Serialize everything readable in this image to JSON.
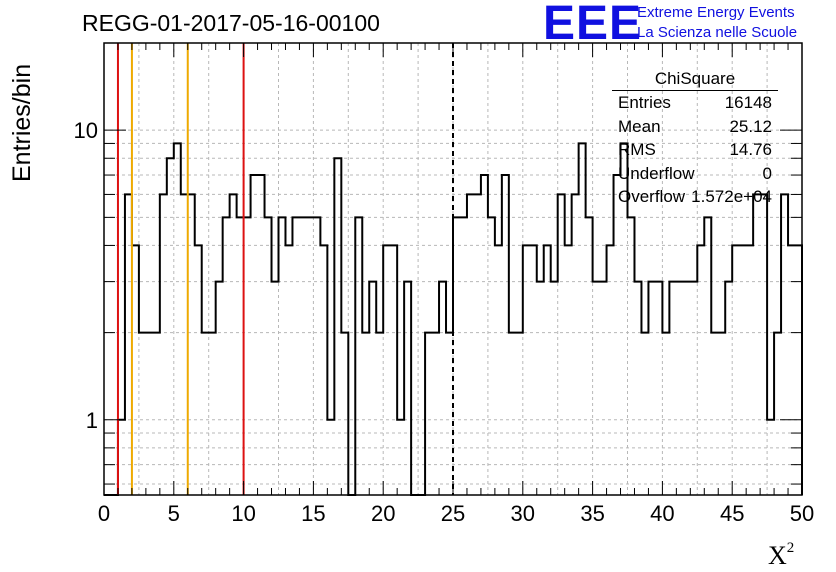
{
  "title": "REGG-01-2017-05-16-00100",
  "logo": {
    "text": "EEE",
    "line1": "Extreme Energy Events",
    "line2": "La Scienza nelle Scuole",
    "color": "#1010e0"
  },
  "stats": {
    "title": "ChiSquare",
    "rows": [
      {
        "key": "Entries",
        "value": "16148"
      },
      {
        "key": "Mean",
        "value": "25.12"
      },
      {
        "key": "RMS",
        "value": "14.76"
      },
      {
        "key": "Underflow",
        "value": "0"
      },
      {
        "key": "Overflow",
        "value": "1.572e+04"
      }
    ]
  },
  "chart_data": {
    "type": "histogram",
    "title": "REGG-01-2017-05-16-00100",
    "xlabel": "X²",
    "ylabel": "Entries/bin",
    "xlim": [
      0,
      50
    ],
    "ylim": [
      0.55,
      20
    ],
    "y_scale": "log",
    "grid": true,
    "bin_width": 0.5,
    "x_ticks": [
      "0",
      "5",
      "10",
      "15",
      "20",
      "25",
      "30",
      "35",
      "40",
      "45",
      "50"
    ],
    "y_ticks": [
      "1",
      "10"
    ],
    "values": [
      0,
      0,
      1,
      6,
      4,
      2,
      2,
      2,
      6,
      8,
      9,
      6,
      6,
      4,
      2,
      2,
      3,
      5,
      6,
      5,
      5,
      7,
      7,
      5,
      3,
      5,
      4,
      5,
      5,
      5,
      5,
      4,
      1,
      8,
      2,
      0,
      5,
      2,
      3,
      2,
      4,
      4,
      1,
      3,
      0,
      0,
      2,
      2,
      3,
      2,
      5,
      5,
      6,
      6,
      7,
      5,
      4,
      7,
      2,
      2,
      4,
      4,
      3,
      4,
      3,
      6,
      4,
      6,
      9,
      5,
      3,
      3,
      4,
      7,
      9,
      5,
      3,
      2,
      3,
      3,
      2,
      3,
      3,
      3,
      3,
      4,
      5,
      2,
      2,
      3,
      4,
      4,
      4,
      6,
      6,
      1,
      2,
      6,
      4,
      4
    ],
    "reference_lines": [
      {
        "x": 1,
        "color": "#dd1111"
      },
      {
        "x": 2,
        "color": "#eeaa00"
      },
      {
        "x": 6,
        "color": "#eeaa00"
      },
      {
        "x": 10,
        "color": "#dd1111"
      },
      {
        "x": 25,
        "color": "#000000",
        "dashed": true
      }
    ]
  }
}
